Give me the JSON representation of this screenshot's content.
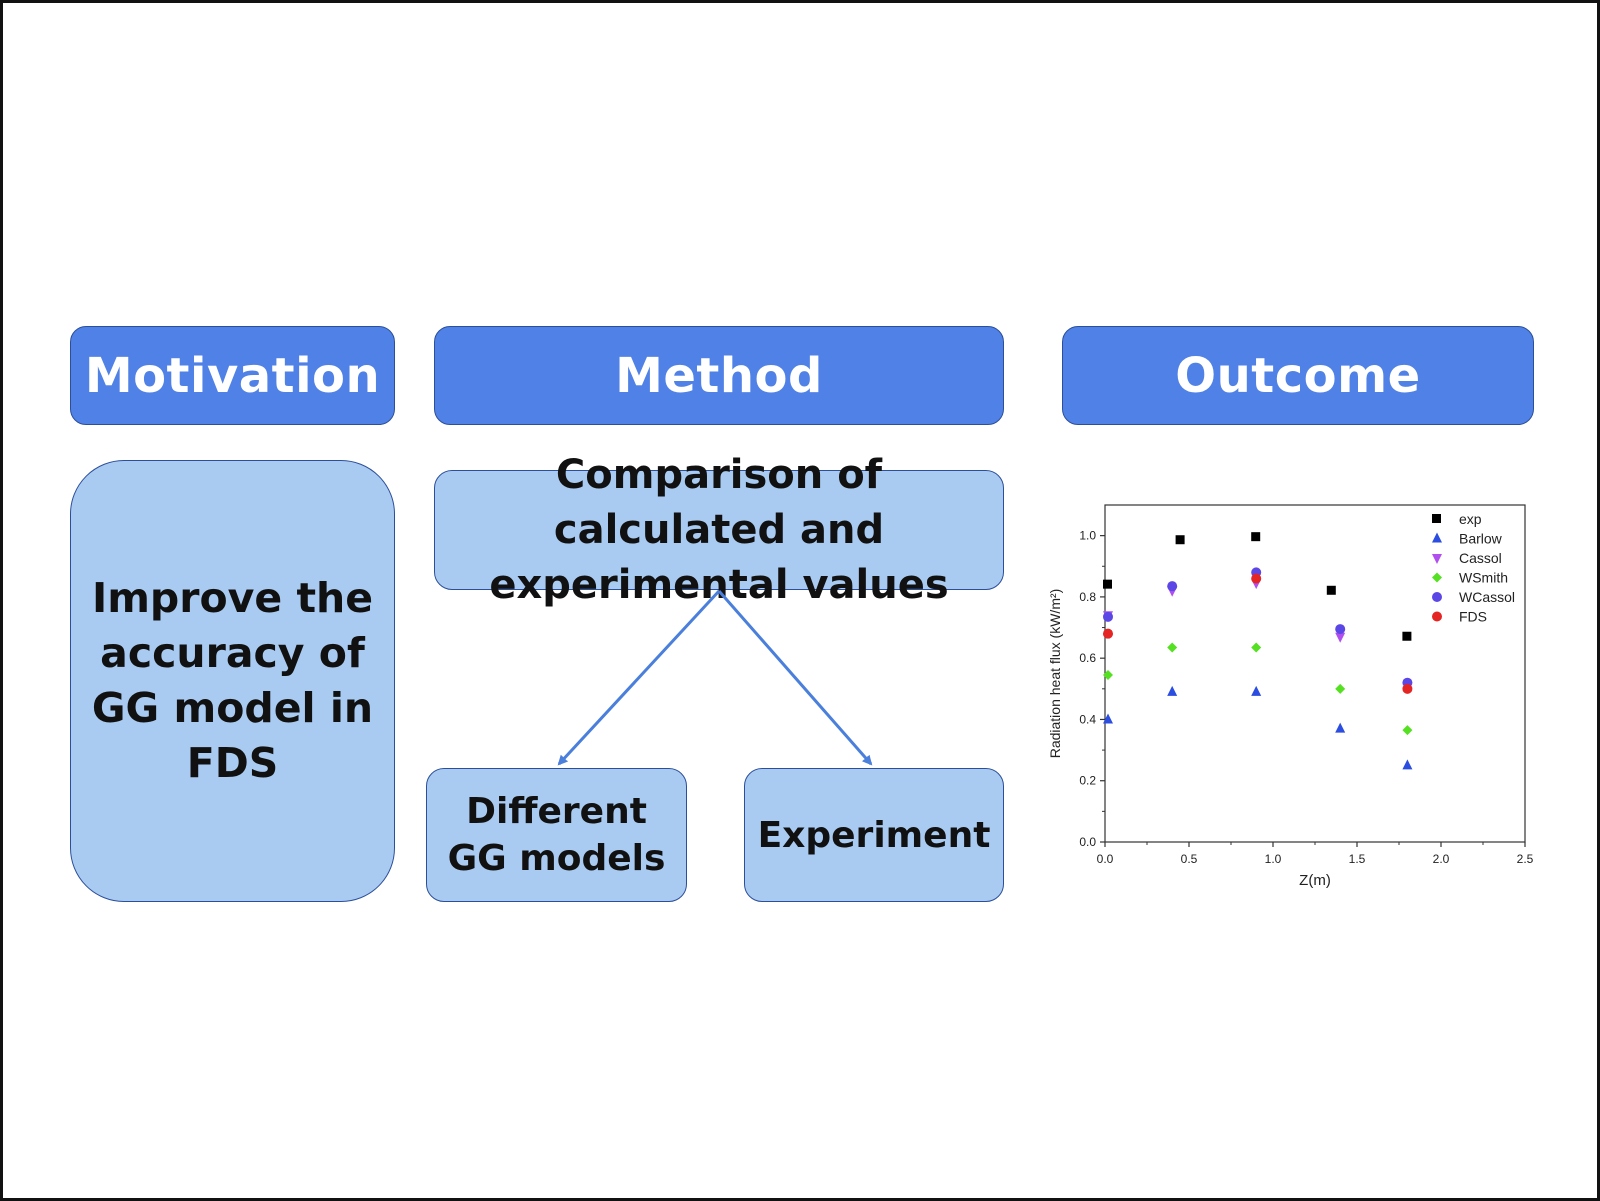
{
  "headers": {
    "motivation": "Motivation",
    "method": "Method",
    "outcome": "Outcome"
  },
  "boxes": {
    "motivation_text": "Improve the accuracy of GG model in FDS",
    "comparison": "Comparison of calculated and experimental values",
    "gg_models": "Different GG models",
    "experiment": "Experiment"
  },
  "colors": {
    "header_fill": "#4f81e6",
    "box_fill": "#a9cbf2",
    "arrow": "#4a7fdc"
  },
  "chart_data": {
    "type": "scatter",
    "title": "",
    "xlabel": "Z(m)",
    "ylabel": "Radiation heat flux (kW/m²)",
    "xlim": [
      0.0,
      2.5
    ],
    "ylim": [
      0.0,
      1.1
    ],
    "xticks": [
      "0.0",
      "0.5",
      "1.0",
      "1.5",
      "2.0",
      "2.5"
    ],
    "yticks": [
      "0.0",
      "0.2",
      "0.4",
      "0.6",
      "0.8",
      "1.0"
    ],
    "legend_position": "top-right",
    "series": [
      {
        "name": "exp",
        "marker": "square",
        "color": "#000000",
        "x": [
          0.0,
          0.45,
          0.9,
          1.35,
          1.8
        ],
        "y": [
          0.84,
          0.985,
          0.995,
          0.82,
          0.67
        ]
      },
      {
        "name": "Barlow",
        "marker": "triangle-up",
        "color": "#2b4de0",
        "x": [
          0.0,
          0.4,
          0.9,
          1.4,
          1.8
        ],
        "y": [
          0.4,
          0.49,
          0.49,
          0.37,
          0.25
        ]
      },
      {
        "name": "Cassol",
        "marker": "triangle-down",
        "color": "#b04ef0",
        "x": [
          0.0,
          0.4,
          0.9,
          1.4,
          1.8
        ],
        "y": [
          0.74,
          0.82,
          0.845,
          0.67,
          0.51
        ]
      },
      {
        "name": "WSmith",
        "marker": "diamond",
        "color": "#55e022",
        "x": [
          0.0,
          0.4,
          0.9,
          1.4,
          1.8
        ],
        "y": [
          0.545,
          0.635,
          0.635,
          0.5,
          0.365
        ]
      },
      {
        "name": "WCassol",
        "marker": "circle",
        "color": "#5b46e6",
        "x": [
          0.0,
          0.4,
          0.9,
          1.4,
          1.8
        ],
        "y": [
          0.735,
          0.835,
          0.88,
          0.695,
          0.52
        ]
      },
      {
        "name": "FDS",
        "marker": "circle",
        "color": "#e52424",
        "x": [
          0.0,
          0.9,
          1.8
        ],
        "y": [
          0.68,
          0.86,
          0.5
        ]
      }
    ]
  }
}
